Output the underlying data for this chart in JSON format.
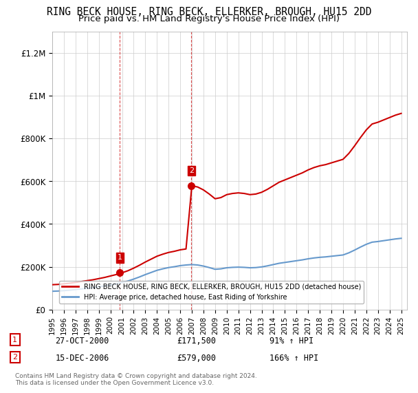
{
  "title": "RING BECK HOUSE, RING BECK, ELLERKER, BROUGH, HU15 2DD",
  "subtitle": "Price paid vs. HM Land Registry's House Price Index (HPI)",
  "title_fontsize": 10.5,
  "subtitle_fontsize": 9.5,
  "ylim": [
    0,
    1300000
  ],
  "yticks": [
    0,
    200000,
    400000,
    600000,
    800000,
    1000000,
    1200000
  ],
  "ytick_labels": [
    "£0",
    "£200K",
    "£400K",
    "£600K",
    "£800K",
    "£1M",
    "£1.2M"
  ],
  "xlim_start": 1995.0,
  "xlim_end": 2025.5,
  "sale1_year": 2000.82,
  "sale1_price": 171500,
  "sale1_label": "1",
  "sale2_year": 2006.96,
  "sale2_price": 579000,
  "sale2_label": "2",
  "sale1_date": "27-OCT-2000",
  "sale1_amount": "£171,500",
  "sale1_hpi": "91% ↑ HPI",
  "sale2_date": "15-DEC-2006",
  "sale2_amount": "£579,000",
  "sale2_hpi": "166% ↑ HPI",
  "house_line_color": "#cc0000",
  "hpi_line_color": "#6699cc",
  "vline_color": "#cc0000",
  "vline_style": "--",
  "legend_house_label": "RING BECK HOUSE, RING BECK, ELLERKER, BROUGH, HU15 2DD (detached house)",
  "legend_hpi_label": "HPI: Average price, detached house, East Riding of Yorkshire",
  "footer": "Contains HM Land Registry data © Crown copyright and database right 2024.\nThis data is licensed under the Open Government Licence v3.0.",
  "background_color": "#ffffff",
  "grid_color": "#cccccc"
}
